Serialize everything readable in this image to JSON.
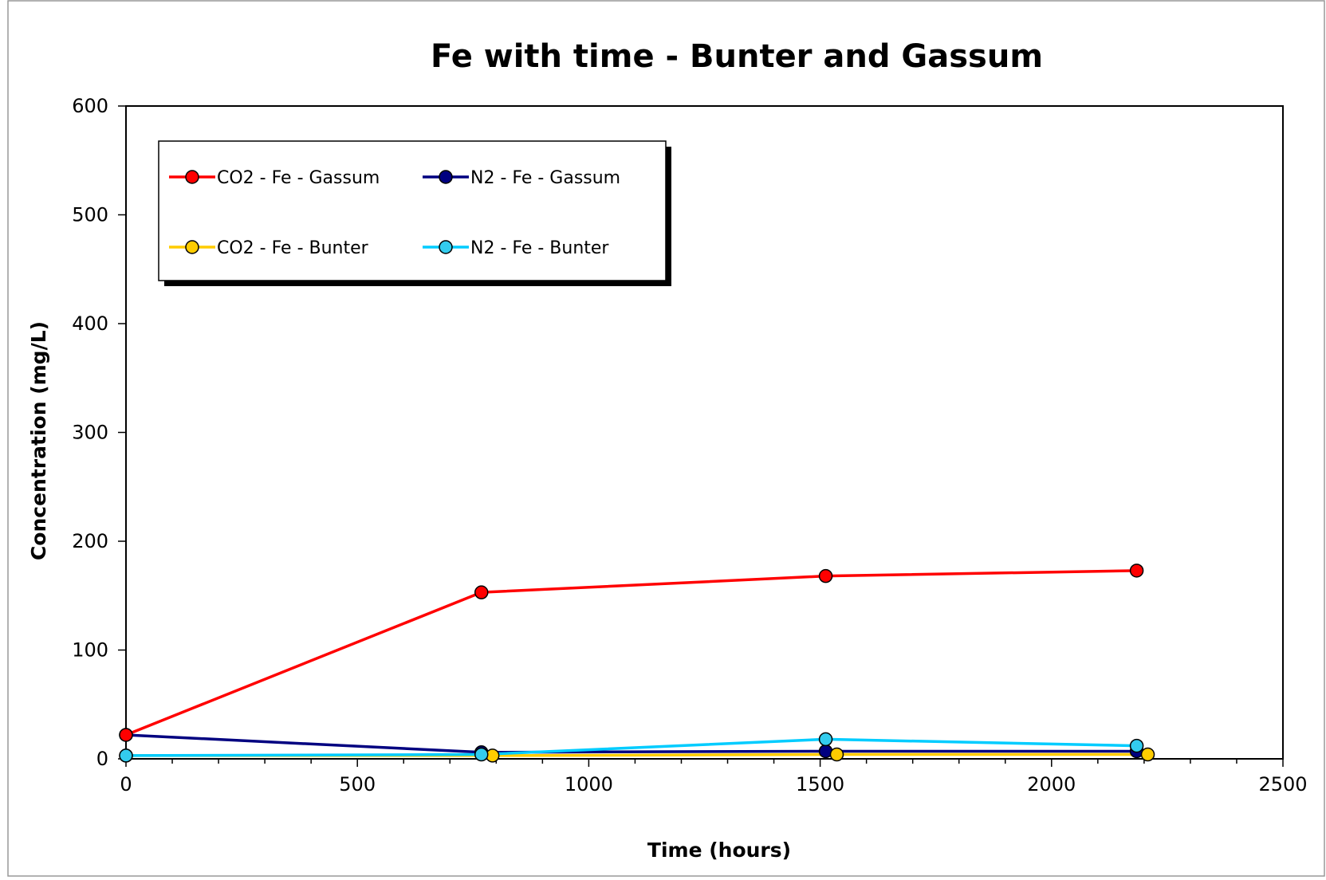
{
  "chart_data": {
    "type": "line",
    "title": "Fe with time - Bunter and Gassum",
    "xlabel": "Time (hours)",
    "ylabel": "Concentration (mg/L)",
    "xlim": [
      0,
      2500
    ],
    "ylim": [
      0,
      600
    ],
    "x_ticks": [
      0,
      500,
      1000,
      1500,
      2000,
      2500
    ],
    "y_ticks": [
      0,
      100,
      200,
      300,
      400,
      500,
      600
    ],
    "x_tick_labels": [
      "0",
      "500",
      "1000",
      "1500",
      "2000",
      "2500"
    ],
    "y_tick_labels": [
      "0",
      "100",
      "200",
      "300",
      "400",
      "500",
      "600"
    ],
    "grid": false,
    "legend": {
      "placement": "top-left",
      "columns": 2
    },
    "series": [
      {
        "name": "CO2 - Fe - Gassum",
        "color": "#ff0000",
        "marker_fill": "#ff0000",
        "x": [
          0,
          768,
          1512,
          2184
        ],
        "y": [
          22,
          153,
          168,
          173
        ]
      },
      {
        "name": "N2 - Fe - Gassum",
        "color": "#000080",
        "marker_fill": "#000080",
        "x": [
          0,
          768,
          1512,
          2184
        ],
        "y": [
          22,
          6,
          7,
          7
        ]
      },
      {
        "name": "CO2 - Fe - Bunter",
        "color": "#ffcc00",
        "marker_fill": "#ffcc00",
        "x": [
          0,
          792,
          1536,
          2208
        ],
        "y": [
          3,
          3,
          4,
          4
        ]
      },
      {
        "name": "N2 - Fe - Bunter",
        "color": "#00ccff",
        "marker_fill": "#33ccee",
        "x": [
          0,
          768,
          1512,
          2184
        ],
        "y": [
          3,
          4,
          18,
          12
        ]
      }
    ]
  }
}
